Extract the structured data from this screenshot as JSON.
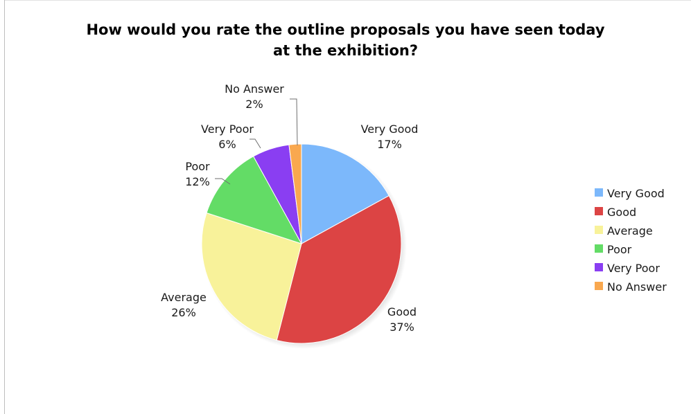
{
  "chart_data": {
    "type": "pie",
    "title": "How would you rate the outline proposals you have seen today at the exhibition?",
    "title_lines": [
      "How would you rate the outline proposals you have seen today",
      "at the exhibition?"
    ],
    "categories": [
      "Very Good",
      "Good",
      "Average",
      "Poor",
      "Very Poor",
      "No Answer"
    ],
    "values": [
      17,
      37,
      26,
      12,
      6,
      2
    ],
    "value_labels": [
      "17%",
      "37%",
      "26%",
      "12%",
      "6%",
      "2%"
    ],
    "colors": [
      "#7cb8fb",
      "#dc4444",
      "#f8f29a",
      "#63dc66",
      "#8a3ef2",
      "#f9a84f"
    ],
    "legend": {
      "placement": "right",
      "entries": [
        "Very Good",
        "Good",
        "Average",
        "Poor",
        "Very Poor",
        "No Answer"
      ]
    },
    "start_angle": "12 o'clock",
    "direction": "clockwise"
  }
}
